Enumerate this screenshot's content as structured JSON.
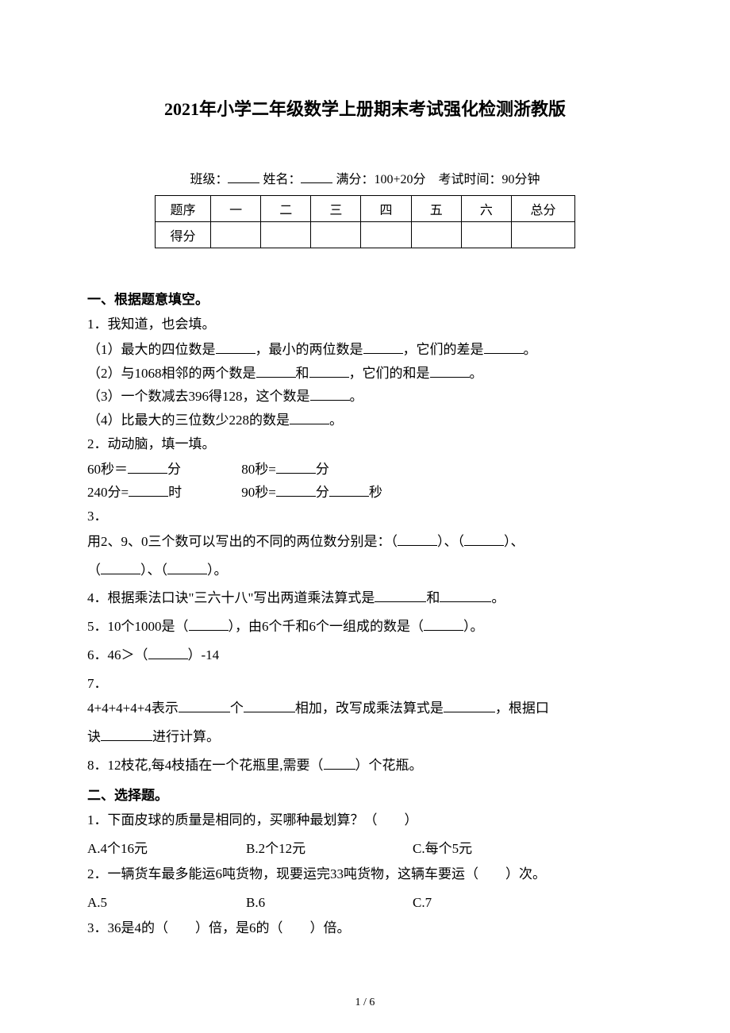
{
  "title": "2021年小学二年级数学上册期末考试强化检测浙教版",
  "info": {
    "class_label": "班级：",
    "name_label": "姓名：",
    "full_marks": "满分：100+20分",
    "time": "考试时间：90分钟"
  },
  "score_table": {
    "row1": [
      "题序",
      "一",
      "二",
      "三",
      "四",
      "五",
      "六",
      "总分"
    ],
    "row2_label": "得分"
  },
  "section1": {
    "heading": "一、根据题意填空。",
    "q1": "1．我知道，也会填。",
    "q1_1a": "（1）最大的四位数是",
    "q1_1b": "，最小的两位数是",
    "q1_1c": "，它们的差是",
    "q1_1d": "。",
    "q1_2a": "（2）与1068相邻的两个数是",
    "q1_2b": "和",
    "q1_2c": "，它们的和是",
    "q1_2d": "。",
    "q1_3a": "（3）一个数减去396得128，这个数是",
    "q1_3b": "。",
    "q1_4a": "（4）比最大的三位数少228的数是",
    "q1_4b": "。",
    "q2": "2．动动脑，填一填。",
    "q2_l1a": "60秒＝",
    "q2_l1b": "分",
    "q2_l1c": "80秒=",
    "q2_l1d": "分",
    "q2_l2a": "240分=",
    "q2_l2b": "时",
    "q2_l2c": "90秒=",
    "q2_l2d": "分",
    "q2_l2e": "秒",
    "q3": "3．",
    "q3_a": "用2、9、0三个数可以写出的不同的两位数分别是：（",
    "q3_b": "）、（",
    "q3_c": "）、",
    "q3_d": "（",
    "q3_e": "）、（",
    "q3_f": "）。",
    "q4_a": "4．根据乘法口诀\"三六十八\"写出两道乘法算式是",
    "q4_b": "和",
    "q4_c": "。",
    "q5_a": "5．10个1000是（",
    "q5_b": "），由6个千和6个一组成的数是（",
    "q5_c": "）。",
    "q6_a": "6．46＞（",
    "q6_b": "）-14",
    "q7": "7．",
    "q7_a": "4+4+4+4+4表示",
    "q7_b": "个",
    "q7_c": "相加，改写成乘法算式是",
    "q7_d": "，根据口",
    "q7_e": "诀",
    "q7_f": "进行计算。",
    "q8_a": "8．12枝花,每4枝插在一个花瓶里,需要（",
    "q8_b": "）个花瓶。"
  },
  "section2": {
    "heading": "二、选择题。",
    "q1": "1．下面皮球的质量是相同的，买哪种最划算？（　　）",
    "q1_opts": [
      "A.4个16元",
      "B.2个12元",
      "C.每个5元"
    ],
    "q2": "2．一辆货车最多能运6吨货物，现要运完33吨货物，这辆车要运（　　）次。",
    "q2_opts": [
      "A.5",
      "B.6",
      "C.7"
    ],
    "q3": "3．36是4的（　　）倍，是6的（　　）倍。"
  },
  "page_num": "1 / 6"
}
